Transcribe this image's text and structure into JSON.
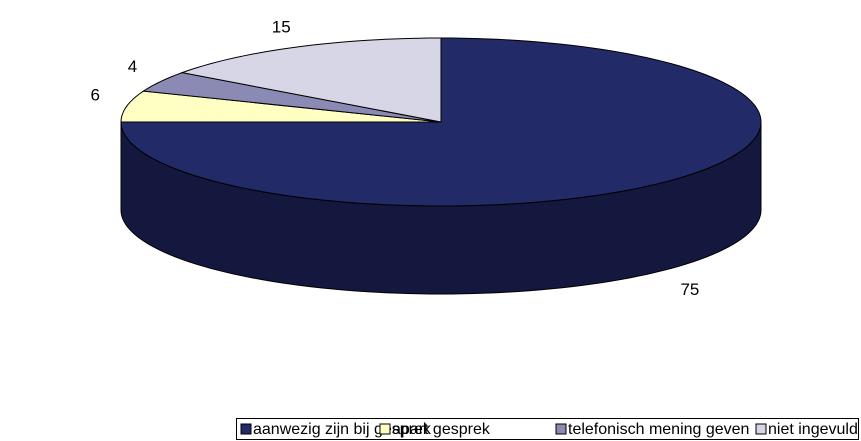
{
  "chart_data": {
    "type": "pie",
    "categories": [
      "aanwezig zijn bij gesprek",
      "apart gesprek",
      "telefonisch mening geven",
      "niet ingevuld"
    ],
    "values": [
      75,
      6,
      4,
      15
    ],
    "colors": [
      "#222a68",
      "#ffffc4",
      "#8a8ab4",
      "#d6d6e6"
    ],
    "side_colors": [
      "#14183e",
      "#c8c890",
      "#5e5e80",
      "#9c9cb0"
    ],
    "legend": "bottom"
  }
}
